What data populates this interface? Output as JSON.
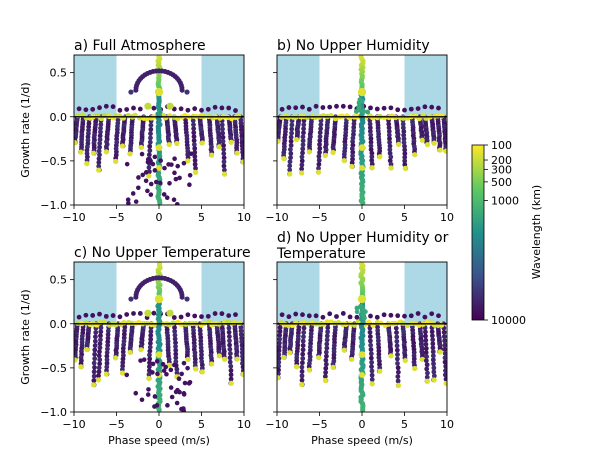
{
  "figure": {
    "colorbar": {
      "label": "Wavelength (km)",
      "ticks": [
        "100",
        "200",
        "300",
        "500",
        "1000",
        "10000"
      ],
      "cmap": [
        "#440154",
        "#3b528b",
        "#21918c",
        "#5ec962",
        "#fde725"
      ]
    },
    "shading_color": "#add8e6",
    "zero_line_color": "#000000"
  },
  "chart_data": [
    {
      "type": "scatter",
      "title": "a) Full Atmosphere",
      "xlabel": "",
      "ylabel": "Growth rate (1/d)",
      "xlim": [
        -10,
        10
      ],
      "ylim": [
        -1.0,
        0.7
      ],
      "xticks": [
        -10,
        -5,
        0,
        5,
        10
      ],
      "yticks": [
        -1.0,
        -0.5,
        0.0,
        0.5
      ],
      "xtick_labels": [
        "−10",
        "−5",
        "0",
        "5",
        "10"
      ],
      "ytick_labels": [
        "−1.0",
        "−0.5",
        "0.0",
        "0.5"
      ],
      "shaded_regions": [
        [
          -10,
          -5
        ],
        [
          5,
          10
        ]
      ],
      "variant": "full"
    },
    {
      "type": "scatter",
      "title": "b) No Upper Humidity",
      "xlabel": "",
      "ylabel": "",
      "xlim": [
        -10,
        10
      ],
      "ylim": [
        -1.0,
        0.7
      ],
      "xticks": [
        -10,
        -5,
        0,
        5,
        10
      ],
      "yticks": [
        -1.0,
        -0.5,
        0.0,
        0.5
      ],
      "xtick_labels": [
        "−10",
        "−5",
        "0",
        "5",
        "10"
      ],
      "ytick_labels": [],
      "shaded_regions": [
        [
          -10,
          -5
        ],
        [
          5,
          10
        ]
      ],
      "variant": "noupper"
    },
    {
      "type": "scatter",
      "title": "c) No Upper Temperature",
      "xlabel": "Phase speed (m/s)",
      "ylabel": "Growth rate (1/d)",
      "xlim": [
        -10,
        10
      ],
      "ylim": [
        -1.0,
        0.7
      ],
      "xticks": [
        -10,
        -5,
        0,
        5,
        10
      ],
      "yticks": [
        -1.0,
        -0.5,
        0.0,
        0.5
      ],
      "xtick_labels": [
        "−10",
        "−5",
        "0",
        "5",
        "10"
      ],
      "ytick_labels": [
        "−1.0",
        "−0.5",
        "0.0",
        "0.5"
      ],
      "shaded_regions": [
        [
          -10,
          -5
        ],
        [
          5,
          10
        ]
      ],
      "variant": "full"
    },
    {
      "type": "scatter",
      "title": "d) No Upper Humidity or Temperature",
      "title_lines": [
        "d) No Upper Humidity or",
        "Temperature"
      ],
      "xlabel": "Phase speed (m/s)",
      "ylabel": "",
      "xlim": [
        -10,
        10
      ],
      "ylim": [
        -1.0,
        0.7
      ],
      "xticks": [
        -10,
        -5,
        0,
        5,
        10
      ],
      "yticks": [
        -1.0,
        -0.5,
        0.0,
        0.5
      ],
      "xtick_labels": [
        "−10",
        "−5",
        "0",
        "5",
        "10"
      ],
      "ytick_labels": [],
      "shaded_regions": [
        [
          -10,
          -5
        ],
        [
          5,
          10
        ]
      ],
      "variant": "noupper"
    }
  ]
}
